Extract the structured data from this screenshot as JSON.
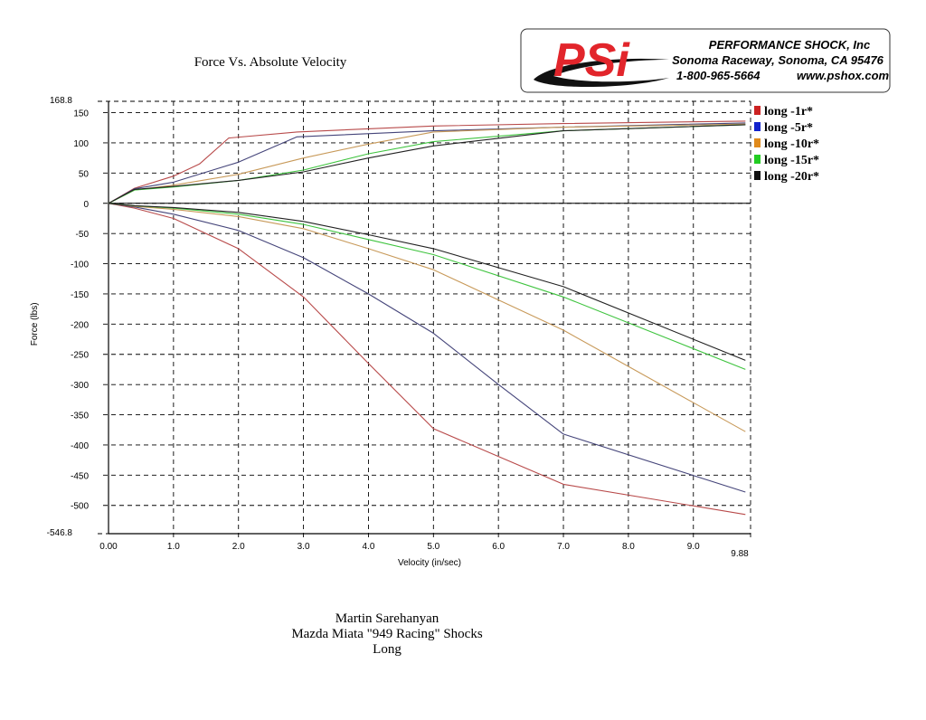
{
  "brand": {
    "logo_mark": "PSi",
    "company": "PERFORMANCE SHOCK, Inc",
    "location": "Sonoma Raceway, Sonoma, CA 95476",
    "phone": "1-800-965-5664",
    "website": "www.pshox.com",
    "logo_color": "#e2252b",
    "swoosh_color": "#111111"
  },
  "caption": {
    "line1": "Martin Sarehanyan",
    "line2": "Mazda Miata \"949 Racing\" Shocks",
    "line3": "Long"
  },
  "chart_data": {
    "type": "line",
    "title": "Force Vs. Absolute Velocity",
    "xlabel": "Velocity (in/sec)",
    "ylabel": "Force (lbs)",
    "xlim": [
      0.0,
      9.88
    ],
    "ylim": [
      -546.8,
      168.8
    ],
    "x_ticks": [
      "0.00",
      "1.0",
      "2.0",
      "3.0",
      "4.0",
      "5.0",
      "6.0",
      "7.0",
      "8.0",
      "9.0",
      "9.88"
    ],
    "x_tick_values": [
      0.0,
      1.0,
      2.0,
      3.0,
      4.0,
      5.0,
      6.0,
      7.0,
      8.0,
      9.0,
      9.88
    ],
    "y_ticks": [
      "168.8",
      "150",
      "100",
      "50",
      "0",
      "-50",
      "-100",
      "-150",
      "-200",
      "-250",
      "-300",
      "-350",
      "-400",
      "-450",
      "-500",
      "-546.8"
    ],
    "y_tick_values": [
      168.8,
      150,
      100,
      50,
      0,
      -50,
      -100,
      -150,
      -200,
      -250,
      -300,
      -350,
      -400,
      -450,
      -500,
      -546.8
    ],
    "grid": true,
    "legend_position": "right",
    "series": [
      {
        "name": "long -1r*",
        "color": "#cc2222",
        "line_color": "#b84a4a",
        "upper": [
          [
            0,
            0
          ],
          [
            0.4,
            25
          ],
          [
            1.0,
            45
          ],
          [
            1.4,
            65
          ],
          [
            1.85,
            108
          ],
          [
            2.9,
            118
          ],
          [
            5.0,
            128
          ],
          [
            7.0,
            132
          ],
          [
            9.8,
            136
          ]
        ],
        "lower": [
          [
            0,
            0
          ],
          [
            0.4,
            -8
          ],
          [
            1.0,
            -25
          ],
          [
            2.0,
            -75
          ],
          [
            3.0,
            -155
          ],
          [
            4.0,
            -265
          ],
          [
            5.0,
            -373
          ],
          [
            7.0,
            -465
          ],
          [
            9.8,
            -515
          ]
        ]
      },
      {
        "name": "long -5r*",
        "color": "#1122cc",
        "line_color": "#45457a",
        "upper": [
          [
            0,
            0
          ],
          [
            0.4,
            24
          ],
          [
            1.0,
            35
          ],
          [
            2.0,
            68
          ],
          [
            2.9,
            110
          ],
          [
            5.0,
            120
          ],
          [
            7.0,
            126
          ],
          [
            9.8,
            133
          ]
        ],
        "lower": [
          [
            0,
            0
          ],
          [
            0.4,
            -6
          ],
          [
            1.0,
            -18
          ],
          [
            2.0,
            -45
          ],
          [
            3.0,
            -90
          ],
          [
            4.0,
            -150
          ],
          [
            5.0,
            -215
          ],
          [
            6.0,
            -300
          ],
          [
            7.0,
            -382
          ],
          [
            9.8,
            -478
          ]
        ]
      },
      {
        "name": "long -10r*",
        "color": "#e08a1c",
        "line_color": "#c89a5a",
        "upper": [
          [
            0,
            0
          ],
          [
            0.4,
            22
          ],
          [
            1.0,
            30
          ],
          [
            2.0,
            48
          ],
          [
            3.0,
            75
          ],
          [
            4.0,
            98
          ],
          [
            5.0,
            118
          ],
          [
            7.0,
            126
          ],
          [
            9.8,
            131
          ]
        ],
        "lower": [
          [
            0,
            0
          ],
          [
            0.4,
            -5
          ],
          [
            1.0,
            -10
          ],
          [
            2.0,
            -22
          ],
          [
            3.0,
            -42
          ],
          [
            4.0,
            -75
          ],
          [
            5.0,
            -110
          ],
          [
            6.0,
            -160
          ],
          [
            7.0,
            -210
          ],
          [
            8.0,
            -270
          ],
          [
            9.0,
            -330
          ],
          [
            9.8,
            -378
          ]
        ]
      },
      {
        "name": "long -15r*",
        "color": "#22cc22",
        "line_color": "#3fc43f",
        "upper": [
          [
            0,
            0
          ],
          [
            0.4,
            22
          ],
          [
            1.0,
            27
          ],
          [
            2.0,
            38
          ],
          [
            3.0,
            55
          ],
          [
            4.0,
            82
          ],
          [
            5.0,
            102
          ],
          [
            7.0,
            120
          ],
          [
            9.8,
            130
          ]
        ],
        "lower": [
          [
            0,
            0
          ],
          [
            0.4,
            -4
          ],
          [
            1.0,
            -8
          ],
          [
            2.0,
            -18
          ],
          [
            3.0,
            -35
          ],
          [
            4.0,
            -60
          ],
          [
            5.0,
            -85
          ],
          [
            7.0,
            -155
          ],
          [
            9.8,
            -275
          ]
        ]
      },
      {
        "name": "long -20r*",
        "color": "#111111",
        "line_color": "#222222",
        "upper": [
          [
            0,
            0
          ],
          [
            0.4,
            23
          ],
          [
            1.0,
            28
          ],
          [
            2.0,
            38
          ],
          [
            3.0,
            52
          ],
          [
            4.0,
            75
          ],
          [
            5.0,
            95
          ],
          [
            7.0,
            120
          ],
          [
            9.8,
            130
          ]
        ],
        "lower": [
          [
            0,
            0
          ],
          [
            0.4,
            -4
          ],
          [
            1.0,
            -7
          ],
          [
            2.0,
            -15
          ],
          [
            3.0,
            -30
          ],
          [
            4.0,
            -52
          ],
          [
            5.0,
            -75
          ],
          [
            7.0,
            -138
          ],
          [
            9.8,
            -260
          ]
        ]
      }
    ]
  }
}
